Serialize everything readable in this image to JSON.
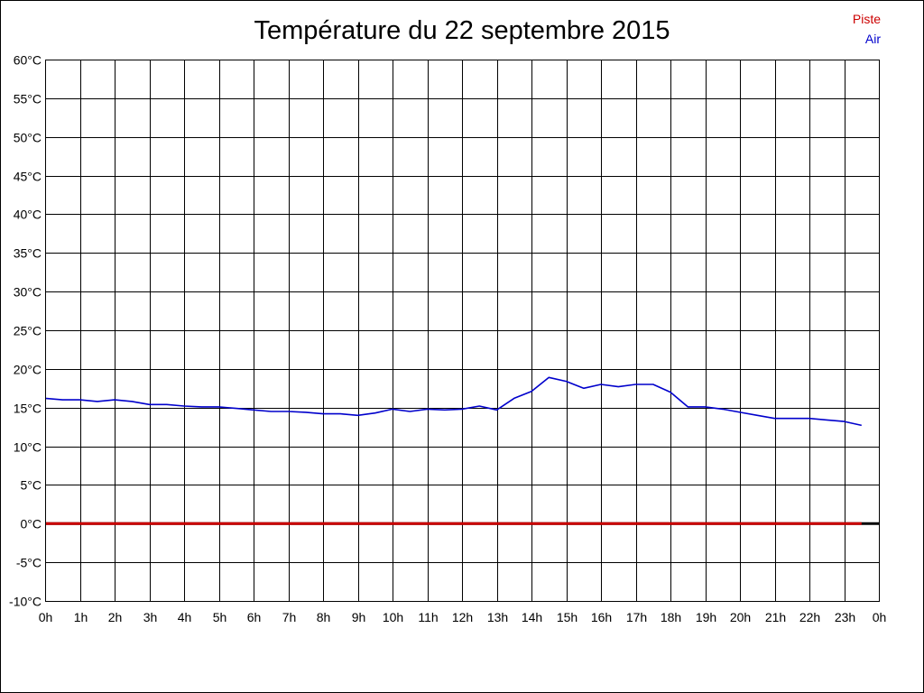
{
  "chart_data": {
    "type": "line",
    "title": "Température du 22 septembre 2015",
    "xlabel": "",
    "ylabel": "",
    "xlim": [
      0,
      24
    ],
    "ylim": [
      -10,
      60
    ],
    "grid": true,
    "legend_position": "top-right",
    "y_ticks": [
      {
        "value": 60,
        "label": "60°C"
      },
      {
        "value": 55,
        "label": "55°C"
      },
      {
        "value": 50,
        "label": "50°C"
      },
      {
        "value": 45,
        "label": "45°C"
      },
      {
        "value": 40,
        "label": "40°C"
      },
      {
        "value": 35,
        "label": "35°C"
      },
      {
        "value": 30,
        "label": "30°C"
      },
      {
        "value": 25,
        "label": "25°C"
      },
      {
        "value": 20,
        "label": "20°C"
      },
      {
        "value": 15,
        "label": "15°C"
      },
      {
        "value": 10,
        "label": "10°C"
      },
      {
        "value": 5,
        "label": "5°C"
      },
      {
        "value": 0,
        "label": "0°C"
      },
      {
        "value": -5,
        "label": "-5°C"
      },
      {
        "value": -10,
        "label": "-10°C"
      }
    ],
    "x_ticks": [
      {
        "value": 0,
        "label": "0h"
      },
      {
        "value": 1,
        "label": "1h"
      },
      {
        "value": 2,
        "label": "2h"
      },
      {
        "value": 3,
        "label": "3h"
      },
      {
        "value": 4,
        "label": "4h"
      },
      {
        "value": 5,
        "label": "5h"
      },
      {
        "value": 6,
        "label": "6h"
      },
      {
        "value": 7,
        "label": "7h"
      },
      {
        "value": 8,
        "label": "8h"
      },
      {
        "value": 9,
        "label": "9h"
      },
      {
        "value": 10,
        "label": "10h"
      },
      {
        "value": 11,
        "label": "11h"
      },
      {
        "value": 12,
        "label": "12h"
      },
      {
        "value": 13,
        "label": "13h"
      },
      {
        "value": 14,
        "label": "14h"
      },
      {
        "value": 15,
        "label": "15h"
      },
      {
        "value": 16,
        "label": "16h"
      },
      {
        "value": 17,
        "label": "17h"
      },
      {
        "value": 18,
        "label": "18h"
      },
      {
        "value": 19,
        "label": "19h"
      },
      {
        "value": 20,
        "label": "20h"
      },
      {
        "value": 21,
        "label": "21h"
      },
      {
        "value": 22,
        "label": "22h"
      },
      {
        "value": 23,
        "label": "23h"
      },
      {
        "value": 24,
        "label": "0h"
      }
    ],
    "series": [
      {
        "name": "Piste",
        "color": "#cc0000",
        "x": [
          0,
          23.5
        ],
        "values": [
          0,
          0
        ]
      },
      {
        "name": "Air",
        "color": "#0000cc",
        "x": [
          0,
          0.5,
          1,
          1.5,
          2,
          2.5,
          3,
          3.5,
          4,
          4.5,
          5,
          5.5,
          6,
          6.5,
          7,
          7.5,
          8,
          8.5,
          9,
          9.5,
          10,
          10.5,
          11,
          11.5,
          12,
          12.5,
          13,
          13.5,
          14,
          14.5,
          15,
          15.5,
          16,
          16.5,
          17,
          17.5,
          18,
          18.5,
          19,
          19.5,
          20,
          20.5,
          21,
          21.5,
          22,
          22.5,
          23,
          23.5
        ],
        "values": [
          16.2,
          16.0,
          16.0,
          15.8,
          16.0,
          15.8,
          15.4,
          15.4,
          15.2,
          15.1,
          15.1,
          14.9,
          14.7,
          14.5,
          14.5,
          14.4,
          14.2,
          14.2,
          14.0,
          14.3,
          14.8,
          14.5,
          14.8,
          14.7,
          14.8,
          15.2,
          14.7,
          16.2,
          17.1,
          18.9,
          18.4,
          17.5,
          18.0,
          17.7,
          18.0,
          18.0,
          17.0,
          15.1,
          15.1,
          14.8,
          14.4,
          14.0,
          13.6,
          13.6,
          13.6,
          13.4,
          13.2,
          12.7
        ]
      }
    ]
  }
}
